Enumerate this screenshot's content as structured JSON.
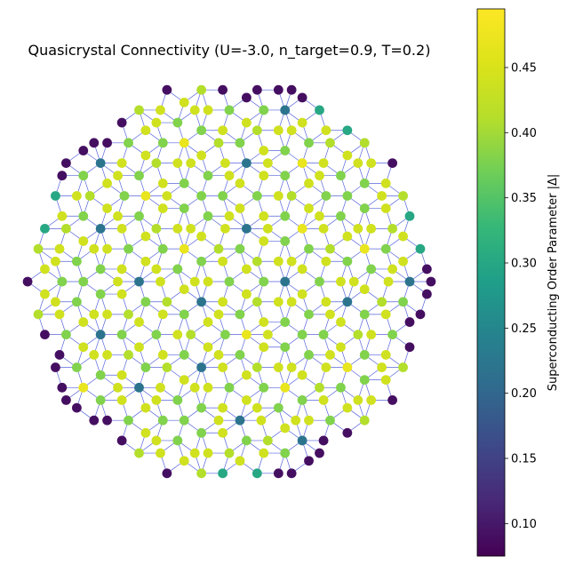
{
  "chart_data": {
    "type": "scatter",
    "title": "Quasicrystal Connectivity (U=-3.0, n_target=0.9, T=0.2)",
    "axes_visible": false,
    "description_of_marks": "Penrose-like quasicrystal network: nodes colored by superconducting order parameter |Δ|, edges in thin blue-gray.",
    "colormap": "viridis",
    "colorbar": {
      "label": "Superconducting Order Parameter |Δ|",
      "range": [
        0.075,
        0.495
      ],
      "ticks": [
        0.1,
        0.15,
        0.2,
        0.25,
        0.3,
        0.35,
        0.4,
        0.45
      ],
      "tick_labels": [
        "0.10",
        "0.15",
        "0.20",
        "0.25",
        "0.30",
        "0.35",
        "0.40",
        "0.45"
      ]
    },
    "lattice": {
      "symmetry": "10-fold",
      "radius_in_lattice_units": 9.6,
      "edge_length_in_lattice_units": 1.0
    },
    "value_levels": {
      "edge_nodes_low": 0.09,
      "edge_nodes_mid": 0.3,
      "degree3": 0.44,
      "degree4": 0.41,
      "degree5": 0.38,
      "degree6": 0.47,
      "degree7": 0.22
    },
    "edge_color": "#3b4ad6",
    "legend": "none"
  }
}
